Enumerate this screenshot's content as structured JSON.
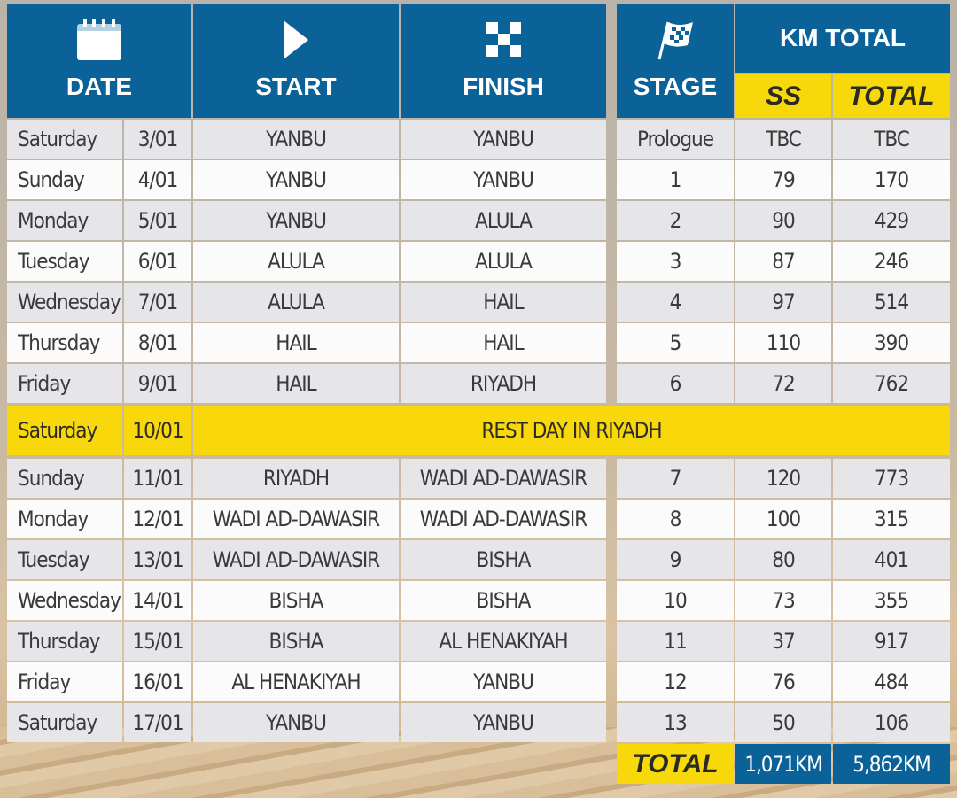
{
  "header": {
    "date": "DATE",
    "start": "START",
    "finish": "FINISH",
    "stage": "STAGE",
    "km_total": "KM TOTAL",
    "ss": "SS",
    "total": "TOTAL",
    "icons": {
      "date": "calendar-icon",
      "start": "play-icon",
      "finish": "checkered-icon",
      "stage": "checkered-flag-icon"
    }
  },
  "colors": {
    "blue": "#0b6299",
    "yellow": "#f7d80a"
  },
  "rows_a": [
    {
      "day": "Saturday",
      "date": "3/01",
      "start": "YANBU",
      "finish": "YANBU",
      "stage": "Prologue",
      "ss": "TBC",
      "total": "TBC"
    },
    {
      "day": "Sunday",
      "date": "4/01",
      "start": "YANBU",
      "finish": "YANBU",
      "stage": "1",
      "ss": "79",
      "total": "170"
    },
    {
      "day": "Monday",
      "date": "5/01",
      "start": "YANBU",
      "finish": "ALULA",
      "stage": "2",
      "ss": "90",
      "total": "429"
    },
    {
      "day": "Tuesday",
      "date": "6/01",
      "start": "ALULA",
      "finish": "ALULA",
      "stage": "3",
      "ss": "87",
      "total": "246"
    },
    {
      "day": "Wednesday",
      "date": "7/01",
      "start": "ALULA",
      "finish": "HAIL",
      "stage": "4",
      "ss": "97",
      "total": "514"
    },
    {
      "day": "Thursday",
      "date": "8/01",
      "start": "HAIL",
      "finish": "HAIL",
      "stage": "5",
      "ss": "110",
      "total": "390"
    },
    {
      "day": "Friday",
      "date": "9/01",
      "start": "HAIL",
      "finish": "RIYADH",
      "stage": "6",
      "ss": "72",
      "total": "762"
    }
  ],
  "rest_day": {
    "day": "Saturday",
    "date": "10/01",
    "label": "REST DAY IN RIYADH"
  },
  "rows_b": [
    {
      "day": "Sunday",
      "date": "11/01",
      "start": "RIYADH",
      "finish": "WADI AD-DAWASIR",
      "stage": "7",
      "ss": "120",
      "total": "773"
    },
    {
      "day": "Monday",
      "date": "12/01",
      "start": "WADI AD-DAWASIR",
      "finish": "WADI AD-DAWASIR",
      "stage": "8",
      "ss": "100",
      "total": "315"
    },
    {
      "day": "Tuesday",
      "date": "13/01",
      "start": "WADI AD-DAWASIR",
      "finish": "BISHA",
      "stage": "9",
      "ss": "80",
      "total": "401"
    },
    {
      "day": "Wednesday",
      "date": "14/01",
      "start": "BISHA",
      "finish": "BISHA",
      "stage": "10",
      "ss": "73",
      "total": "355"
    },
    {
      "day": "Thursday",
      "date": "15/01",
      "start": "BISHA",
      "finish": "AL HENAKIYAH",
      "stage": "11",
      "ss": "37",
      "total": "917"
    },
    {
      "day": "Friday",
      "date": "16/01",
      "start": "AL HENAKIYAH",
      "finish": "YANBU",
      "stage": "12",
      "ss": "76",
      "total": "484"
    },
    {
      "day": "Saturday",
      "date": "17/01",
      "start": "YANBU",
      "finish": "YANBU",
      "stage": "13",
      "ss": "50",
      "total": "106"
    }
  ],
  "totals": {
    "label": "TOTAL",
    "ss": "1,071KM",
    "total": "5,862KM"
  }
}
